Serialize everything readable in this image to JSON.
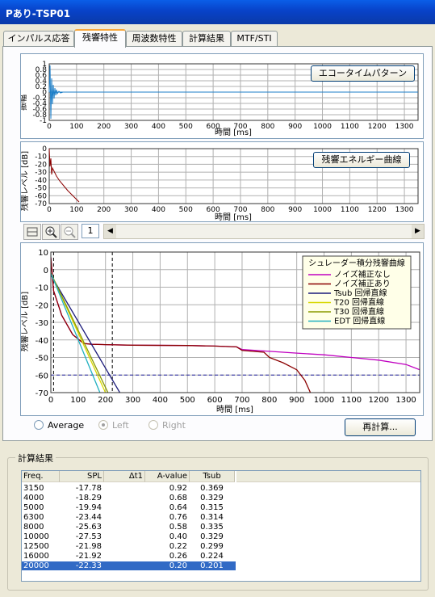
{
  "window": {
    "title": "Pあり-TSP01"
  },
  "tabs": [
    {
      "label": "インパルス応答",
      "active": false
    },
    {
      "label": "残響特性",
      "active": true
    },
    {
      "label": "周波数特性",
      "active": false
    },
    {
      "label": "計算結果",
      "active": false
    },
    {
      "label": "MTF/STI",
      "active": false
    }
  ],
  "echo_chart": {
    "button": "エコータイムパターン",
    "ylabel": "振幅",
    "xlabel": "時間 [ms]",
    "y_ticks": [
      "1",
      "0.8",
      "0.6",
      "0.4",
      "0.2",
      "0",
      "-0.2",
      "-0.4",
      "-0.6",
      "-0.8",
      "-1"
    ],
    "x_ticks": [
      "0",
      "100",
      "200",
      "300",
      "400",
      "500",
      "600",
      "700",
      "800",
      "900",
      "1000",
      "1100",
      "1200",
      "1300"
    ]
  },
  "energy_chart": {
    "button": "残響エネルギー曲線",
    "ylabel": "残響レベル [dB]",
    "xlabel": "時間 [ms]",
    "y_ticks": [
      "0",
      "-10",
      "-20",
      "-30",
      "-40",
      "-50",
      "-60",
      "-70"
    ],
    "x_ticks": [
      "0",
      "100",
      "200",
      "300",
      "400",
      "500",
      "600",
      "700",
      "800",
      "900",
      "1000",
      "1100",
      "1200",
      "1300"
    ]
  },
  "toolbar": {
    "page": "1"
  },
  "chart_data": {
    "type": "line",
    "ylabel": "残響レベル [dB]",
    "xlabel": "時間 [ms]",
    "xlim": [
      0,
      1350
    ],
    "ylim": [
      -70,
      10
    ],
    "x_ticks": [
      0,
      100,
      200,
      300,
      400,
      500,
      600,
      700,
      800,
      900,
      1000,
      1100,
      1200,
      1300
    ],
    "y_ticks": [
      10,
      0,
      -10,
      -20,
      -30,
      -40,
      -50,
      -60,
      -70
    ],
    "grid": true,
    "legend_title": "シュレーダー積分残響曲線",
    "legend_position": "top-right",
    "series": [
      {
        "name": "ノイズ補正なし",
        "color": "#c000c0",
        "x": [
          0,
          10,
          40,
          80,
          120,
          150,
          200,
          300,
          500,
          600,
          680,
          700,
          800,
          900,
          1000,
          1100,
          1200,
          1300,
          1350
        ],
        "y": [
          7,
          -12,
          -26,
          -37,
          -42,
          -42.5,
          -42.7,
          -43,
          -43.2,
          -43.5,
          -44,
          -45.5,
          -46.5,
          -47.5,
          -48.5,
          -50,
          -51.5,
          -54,
          -57
        ]
      },
      {
        "name": "ノイズ補正あり",
        "color": "#8b0000",
        "x": [
          0,
          10,
          40,
          80,
          120,
          150,
          200,
          300,
          500,
          600,
          680,
          700,
          780,
          800,
          850,
          900,
          930,
          950
        ],
        "y": [
          7,
          -12,
          -26,
          -37,
          -42,
          -42.5,
          -42.7,
          -43,
          -43.2,
          -43.5,
          -44,
          -46,
          -47,
          -50,
          -53,
          -57,
          -63,
          -70
        ]
      },
      {
        "name": "Tsub 回帰直線",
        "color": "#1a1a7a",
        "x": [
          0,
          260
        ],
        "y": [
          -3,
          -72
        ]
      },
      {
        "name": "T20 回帰直線",
        "color": "#d8d800",
        "x": [
          0,
          200
        ],
        "y": [
          -2,
          -70
        ]
      },
      {
        "name": "T30 回帰直線",
        "color": "#8a9a00",
        "x": [
          0,
          215
        ],
        "y": [
          -2,
          -72
        ]
      },
      {
        "name": "EDT 回帰直線",
        "color": "#20b0c0",
        "x": [
          0,
          185
        ],
        "y": [
          -2,
          -72
        ]
      }
    ],
    "hlines": [
      {
        "y": -60,
        "color": "#2020a0",
        "style": "dashed"
      }
    ],
    "vlines": [
      {
        "x": 10,
        "color": "#000",
        "style": "dashed"
      },
      {
        "x": 225,
        "color": "#000",
        "style": "dashed"
      }
    ]
  },
  "radios": [
    {
      "label": "Average",
      "selected": false,
      "enabled": true
    },
    {
      "label": "Left",
      "selected": true,
      "enabled": false
    },
    {
      "label": "Right",
      "selected": false,
      "enabled": false
    }
  ],
  "recalc_button": "再計算...",
  "results": {
    "group_label": "計算結果",
    "columns": [
      "Freq.",
      "SPL",
      "Δt1",
      "A-value",
      "Tsub"
    ],
    "rows": [
      [
        "3150",
        "-17.78",
        "",
        "0.92",
        "0.369"
      ],
      [
        "4000",
        "-18.29",
        "",
        "0.68",
        "0.329"
      ],
      [
        "5000",
        "-19.94",
        "",
        "0.64",
        "0.315"
      ],
      [
        "6300",
        "-23.44",
        "",
        "0.76",
        "0.314"
      ],
      [
        "8000",
        "-25.63",
        "",
        "0.58",
        "0.335"
      ],
      [
        "10000",
        "-27.53",
        "",
        "0.40",
        "0.329"
      ],
      [
        "12500",
        "-21.98",
        "",
        "0.22",
        "0.299"
      ],
      [
        "16000",
        "-21.92",
        "",
        "0.26",
        "0.224"
      ],
      [
        "20000",
        "-22.33",
        "",
        "0.20",
        "0.201"
      ]
    ],
    "selected_index": 8
  }
}
